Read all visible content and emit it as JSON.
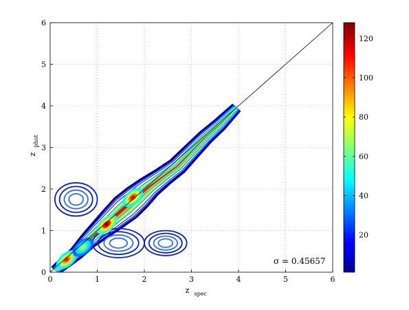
{
  "chart_data": {
    "type": "contour-scatter",
    "xlabel": "z",
    "xlabel_sub": "spec",
    "ylabel": "z",
    "ylabel_sub": "phot",
    "xlim": [
      0,
      6
    ],
    "ylim": [
      0,
      6
    ],
    "xticks": [
      "0",
      "1",
      "2",
      "3",
      "4",
      "5",
      "6"
    ],
    "yticks": [
      "0",
      "1",
      "2",
      "3",
      "4",
      "5",
      "6"
    ],
    "grid": true,
    "reference_line": {
      "x": [
        0,
        6
      ],
      "y": [
        0,
        6
      ]
    },
    "annotation": "σ = 0.45657",
    "colorbar": {
      "range": [
        1,
        128
      ],
      "ticks": [
        "20",
        "40",
        "60",
        "80",
        "100",
        "120"
      ],
      "tick_values": [
        20,
        40,
        60,
        80,
        100,
        120
      ],
      "colormap": "jet"
    },
    "regions": [
      {
        "name": "main",
        "points": [
          [
            0.12,
            0.05
          ],
          [
            0.3,
            0.22
          ],
          [
            0.55,
            0.45
          ],
          [
            0.8,
            0.75
          ],
          [
            1.05,
            1.0
          ],
          [
            1.3,
            1.25
          ],
          [
            1.6,
            1.55
          ],
          [
            1.85,
            1.8
          ],
          [
            2.1,
            2.05
          ],
          [
            2.4,
            2.3
          ],
          [
            2.7,
            2.55
          ],
          [
            3.0,
            2.9
          ],
          [
            3.3,
            3.25
          ],
          [
            3.6,
            3.55
          ],
          [
            3.95,
            3.95
          ]
        ],
        "halfwidth": [
          0.12,
          0.14,
          0.16,
          0.2,
          0.25,
          0.3,
          0.35,
          0.33,
          0.28,
          0.24,
          0.22,
          0.2,
          0.18,
          0.16,
          0.12
        ],
        "peak": 128
      },
      {
        "name": "low-z-high-phot",
        "center": [
          0.55,
          1.75
        ],
        "radius": [
          0.45,
          0.4
        ],
        "peak": 8
      },
      {
        "name": "high-z-low-phot",
        "center": [
          1.45,
          0.7
        ],
        "radius": [
          0.55,
          0.35
        ],
        "peak": 10
      },
      {
        "name": "right-lobe",
        "center": [
          2.45,
          0.7
        ],
        "radius": [
          0.45,
          0.3
        ],
        "peak": 6
      }
    ],
    "peaks": [
      {
        "x": 0.35,
        "y": 0.3,
        "level": 110
      },
      {
        "x": 1.2,
        "y": 1.15,
        "level": 128
      },
      {
        "x": 1.75,
        "y": 1.8,
        "level": 115
      },
      {
        "x": 0.7,
        "y": 0.6,
        "level": 70
      }
    ]
  }
}
